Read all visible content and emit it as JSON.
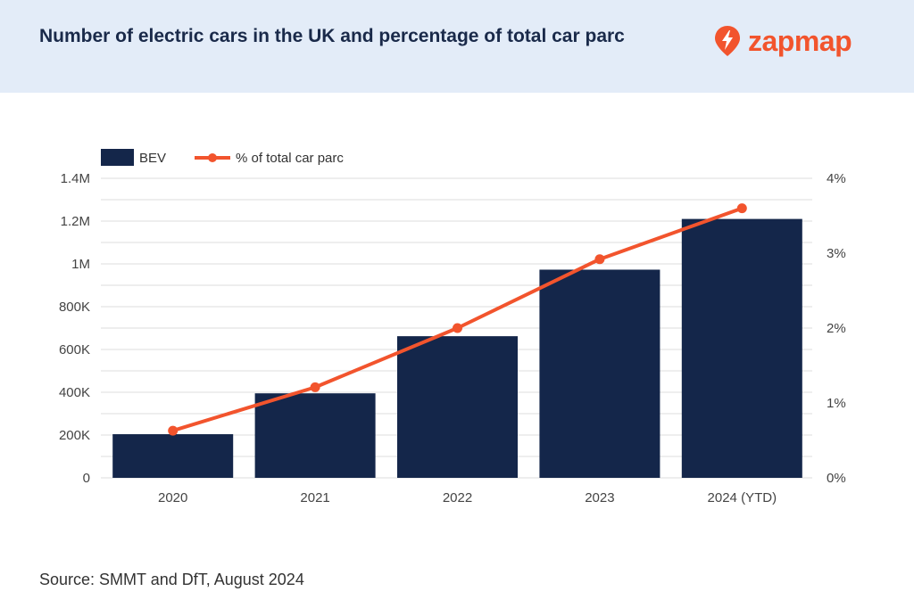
{
  "header": {
    "title": "Number of electric cars in the UK and percentage of total car parc",
    "logo_text": "zapmap",
    "brand_color": "#f2542d"
  },
  "legend": {
    "bar_label": "BEV",
    "line_label": "% of total car parc"
  },
  "colors": {
    "bar": "#14264a",
    "line": "#f2542d",
    "grid": "#dcdcdc",
    "header_bg": "#e3ecf8"
  },
  "chart_data": {
    "type": "bar",
    "categories": [
      "2020",
      "2021",
      "2022",
      "2023",
      "2024 (YTD)"
    ],
    "series": [
      {
        "name": "BEV",
        "type": "bar",
        "axis": "left",
        "values": [
          204000,
          395000,
          662000,
          973000,
          1210000
        ]
      },
      {
        "name": "% of total car parc",
        "type": "line",
        "axis": "right",
        "values": [
          0.63,
          1.21,
          2.0,
          2.92,
          3.6
        ]
      }
    ],
    "y_left": {
      "ylim": [
        0,
        1400000
      ],
      "ticks": [
        0,
        200000,
        400000,
        600000,
        800000,
        1000000,
        1200000,
        1400000
      ],
      "tick_labels": [
        "0",
        "200K",
        "400K",
        "600K",
        "800K",
        "1M",
        "1.2M",
        "1.4M"
      ]
    },
    "y_right": {
      "ylim": [
        0,
        4
      ],
      "ticks": [
        0,
        1,
        2,
        3,
        4
      ],
      "tick_labels": [
        "0%",
        "1%",
        "2%",
        "3%",
        "4%"
      ]
    },
    "grid": true,
    "legend_position": "top-left"
  },
  "footer": {
    "source": "Source: SMMT and DfT, August 2024"
  }
}
